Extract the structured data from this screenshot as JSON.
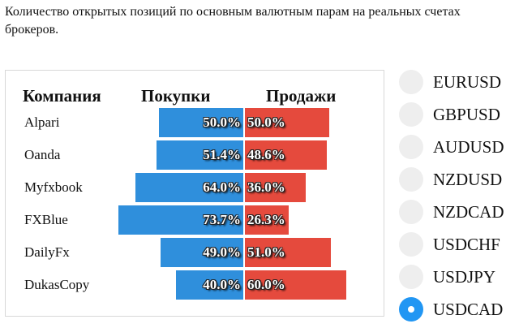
{
  "intro_text": "Количество открытых позиций по основным валютным парам на реальных счетах брокеров.",
  "table": {
    "headers": {
      "company": "Компания",
      "buys": "Покупки",
      "sells": "Продажи"
    },
    "rows": [
      {
        "company": "Alpari",
        "buy": 50.0,
        "sell": 50.0,
        "buy_label": "50.0%",
        "sell_label": "50.0%"
      },
      {
        "company": "Oanda",
        "buy": 51.4,
        "sell": 48.6,
        "buy_label": "51.4%",
        "sell_label": "48.6%"
      },
      {
        "company": "Myfxbook",
        "buy": 64.0,
        "sell": 36.0,
        "buy_label": "64.0%",
        "sell_label": "36.0%"
      },
      {
        "company": "FXBlue",
        "buy": 73.7,
        "sell": 26.3,
        "buy_label": "73.7%",
        "sell_label": "26.3%"
      },
      {
        "company": "DailyFx",
        "buy": 49.0,
        "sell": 51.0,
        "buy_label": "49.0%",
        "sell_label": "51.0%"
      },
      {
        "company": "DukasCopy",
        "buy": 40.0,
        "sell": 60.0,
        "buy_label": "40.0%",
        "sell_label": "60.0%"
      }
    ]
  },
  "colors": {
    "buy": "#2f8fdc",
    "sell": "#e54a3d",
    "radio_selected": "#2196f3",
    "radio_idle": "#eeeeee"
  },
  "pairs": {
    "selected": "USDCAD",
    "items": [
      "EURUSD",
      "GBPUSD",
      "AUDUSD",
      "NZDUSD",
      "NZDCAD",
      "USDCHF",
      "USDJPY",
      "USDCAD"
    ]
  }
}
